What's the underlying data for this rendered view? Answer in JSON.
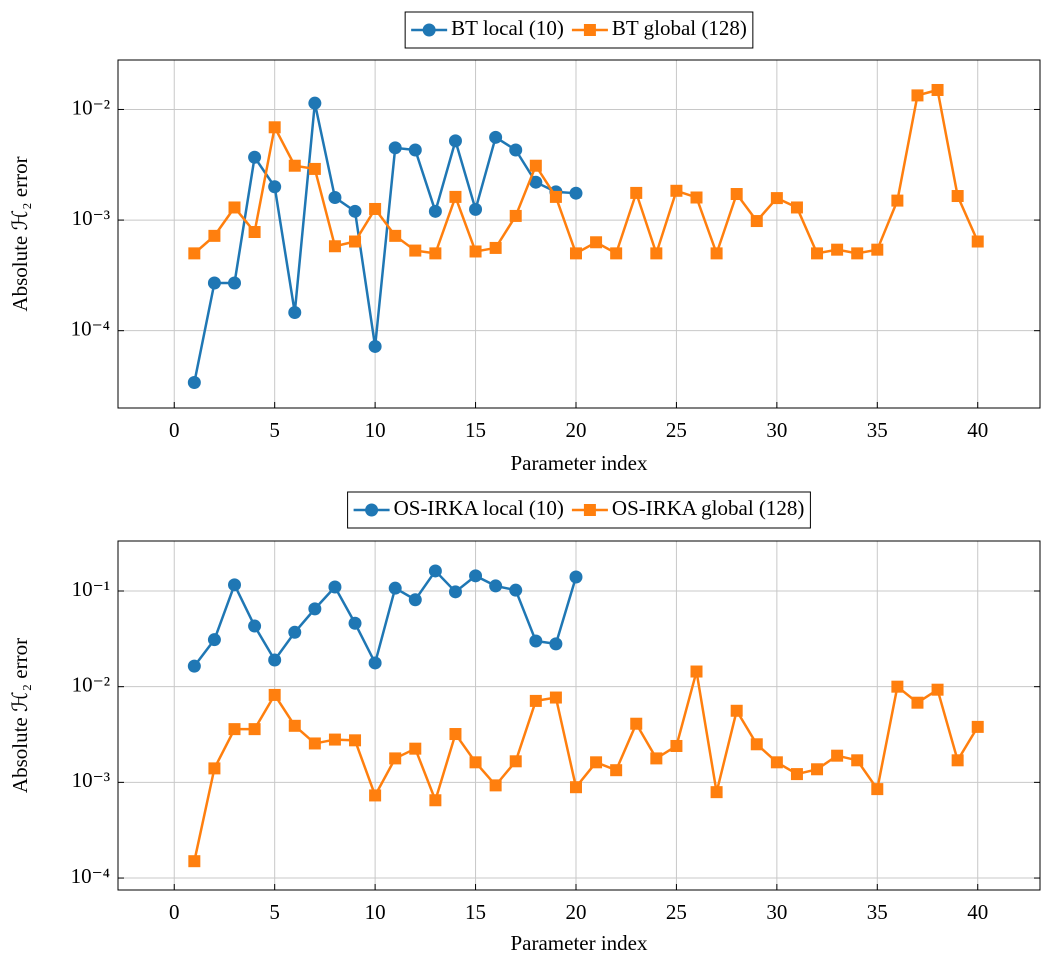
{
  "chart_data": [
    {
      "type": "line",
      "log_y": true,
      "grid": true,
      "legend": "top",
      "xlabel": "Parameter index",
      "ylabel": "Absolute ℋ₂ error",
      "xlim": [
        -2.8,
        43.1
      ],
      "xticks": [
        0,
        5,
        10,
        15,
        20,
        25,
        30,
        35,
        40
      ],
      "ylim": [
        2e-05,
        0.028
      ],
      "yticks": [
        {
          "value": 0.0001,
          "label": "10⁻⁴"
        },
        {
          "value": 0.001,
          "label": "10⁻³"
        },
        {
          "value": 0.01,
          "label": "10⁻²"
        }
      ],
      "x": [
        1,
        2,
        3,
        4,
        5,
        6,
        7,
        8,
        9,
        10,
        11,
        12,
        13,
        14,
        15,
        16,
        17,
        18,
        19,
        20,
        21,
        22,
        23,
        24,
        25,
        26,
        27,
        28,
        29,
        30,
        31,
        32,
        33,
        34,
        35,
        36,
        37,
        38,
        39,
        40
      ],
      "series": [
        {
          "name": "BT local (10)",
          "color": "#1f77b4",
          "marker": "circle",
          "values": [
            3.4e-05,
            0.00027,
            0.00027,
            0.0037,
            0.002,
            0.000146,
            0.0114,
            0.0016,
            0.0012,
            7.2e-05,
            0.0045,
            0.0043,
            0.0012,
            0.0052,
            0.00125,
            0.0056,
            0.0043,
            0.0022,
            0.0018,
            0.00175,
            null,
            null,
            null,
            null,
            null,
            null,
            null,
            null,
            null,
            null,
            null,
            null,
            null,
            null,
            null,
            null,
            null,
            null,
            null,
            null
          ]
        },
        {
          "name": "BT global (128)",
          "color": "#ff7f0e",
          "marker": "square",
          "values": [
            0.0005,
            0.00072,
            0.0013,
            0.00078,
            0.0069,
            0.0031,
            0.0029,
            0.00058,
            0.00064,
            0.00126,
            0.00072,
            0.00053,
            0.0005,
            0.00162,
            0.00052,
            0.00056,
            0.00109,
            0.0031,
            0.00162,
            0.0005,
            0.00063,
            0.0005,
            0.00176,
            0.0005,
            0.00184,
            0.0016,
            0.0005,
            0.00172,
            0.00098,
            0.00158,
            0.0013,
            0.0005,
            0.00054,
            0.0005,
            0.00054,
            0.0015,
            0.0134,
            0.015,
            0.00165,
            0.00064
          ]
        }
      ]
    },
    {
      "type": "line",
      "log_y": true,
      "grid": true,
      "legend": "top",
      "xlabel": "Parameter index",
      "ylabel": "Absolute ℋ₂ error",
      "xlim": [
        -2.8,
        43.1
      ],
      "xticks": [
        0,
        5,
        10,
        15,
        20,
        25,
        30,
        35,
        40
      ],
      "ylim": [
        7.5e-05,
        0.333
      ],
      "yticks": [
        {
          "value": 0.0001,
          "label": "10⁻⁴"
        },
        {
          "value": 0.001,
          "label": "10⁻³"
        },
        {
          "value": 0.01,
          "label": "10⁻²"
        },
        {
          "value": 0.1,
          "label": "10⁻¹"
        }
      ],
      "x": [
        1,
        2,
        3,
        4,
        5,
        6,
        7,
        8,
        9,
        10,
        11,
        12,
        13,
        14,
        15,
        16,
        17,
        18,
        19,
        20,
        21,
        22,
        23,
        24,
        25,
        26,
        27,
        28,
        29,
        30,
        31,
        32,
        33,
        34,
        35,
        36,
        37,
        38,
        39,
        40
      ],
      "series": [
        {
          "name": "OS-IRKA local (10)",
          "color": "#1f77b4",
          "marker": "circle",
          "values": [
            0.0164,
            0.031,
            0.116,
            0.043,
            0.019,
            0.037,
            0.065,
            0.11,
            0.046,
            0.0177,
            0.107,
            0.081,
            0.162,
            0.098,
            0.144,
            0.113,
            0.102,
            0.03,
            0.028,
            0.14,
            null,
            null,
            null,
            null,
            null,
            null,
            null,
            null,
            null,
            null,
            null,
            null,
            null,
            null,
            null,
            null,
            null,
            null,
            null,
            null
          ]
        },
        {
          "name": "OS-IRKA global (128)",
          "color": "#ff7f0e",
          "marker": "square",
          "values": [
            0.00015,
            0.0014,
            0.0036,
            0.0036,
            0.0082,
            0.0039,
            0.00255,
            0.0028,
            0.00275,
            0.00073,
            0.00178,
            0.00225,
            0.00065,
            0.0032,
            0.00162,
            0.00093,
            0.00166,
            0.0071,
            0.0077,
            0.00089,
            0.00162,
            0.00134,
            0.0041,
            0.00178,
            0.0024,
            0.0144,
            0.00079,
            0.0056,
            0.0025,
            0.00162,
            0.00122,
            0.00137,
            0.0019,
            0.0017,
            0.00085,
            0.01,
            0.0068,
            0.0093,
            0.0017,
            0.0038
          ]
        }
      ]
    }
  ]
}
